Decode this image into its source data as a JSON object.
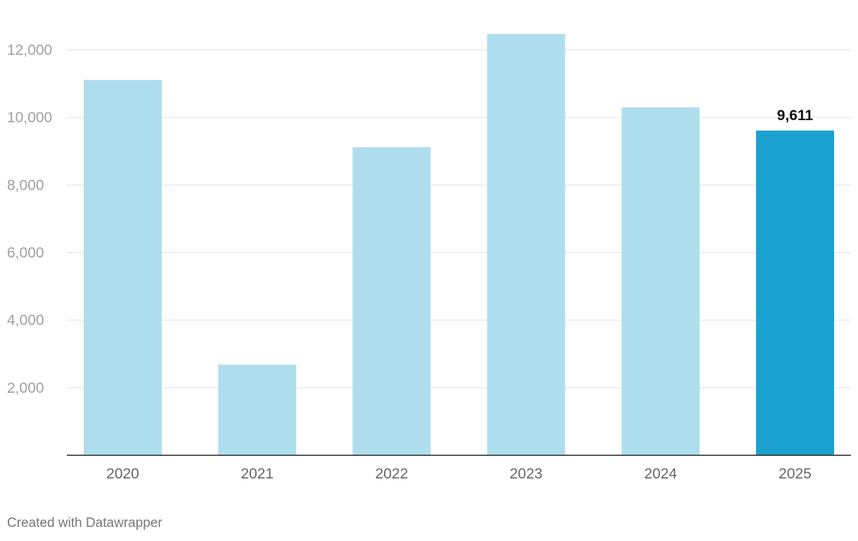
{
  "chart_data": {
    "type": "bar",
    "title": "",
    "xlabel": "",
    "ylabel": "",
    "categories": [
      "2020",
      "2021",
      "2022",
      "2023",
      "2024",
      "2025"
    ],
    "series": [
      {
        "values": [
          11110,
          2680,
          9120,
          12470,
          10300,
          9611
        ]
      }
    ],
    "ylim": [
      0,
      12900
    ],
    "y_ticks": [
      2000,
      4000,
      6000,
      8000,
      10000,
      12000
    ],
    "y_tick_labels": [
      "2,000",
      "4,000",
      "6,000",
      "8,000",
      "10,000",
      "12,000"
    ],
    "grid": true,
    "highlight_index": 5,
    "data_labels": [
      {
        "index": 5,
        "text": "9,611"
      }
    ],
    "colors": {
      "bar": "#aedeed",
      "highlight": "#1aa1cf",
      "grid": "#e3e3e3",
      "baseline": "#222222"
    }
  },
  "footer": {
    "credit": "Created with Datawrapper"
  }
}
